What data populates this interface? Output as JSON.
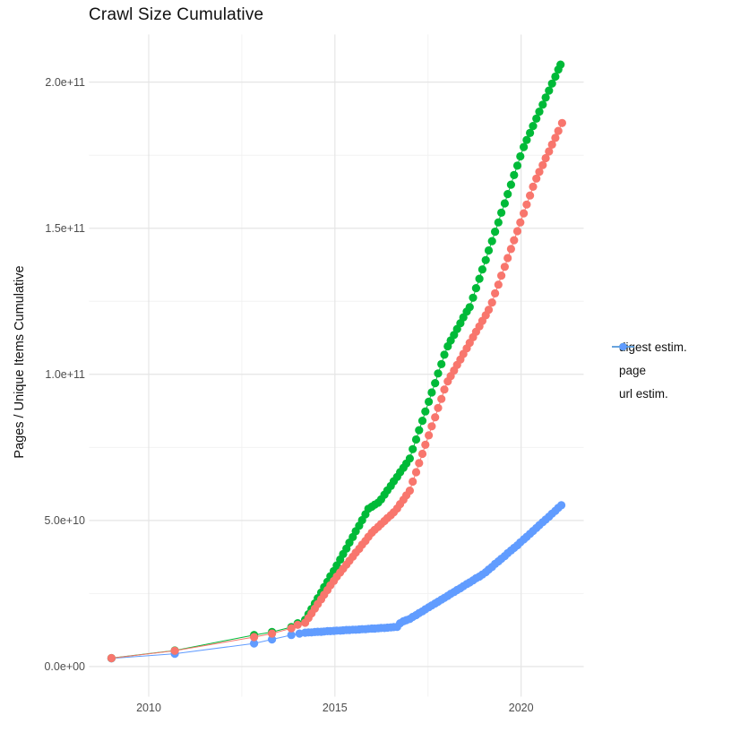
{
  "title": "Crawl Size Cumulative",
  "axes": {
    "y_label": "Pages / Unique Items Cumulative",
    "y_ticks": [
      {
        "label": "0.0e+00",
        "value_e9": 0
      },
      {
        "label": "5.0e+10",
        "value_e9": 50
      },
      {
        "label": "1.0e+11",
        "value_e9": 100
      },
      {
        "label": "1.5e+11",
        "value_e9": 150
      },
      {
        "label": "2.0e+11",
        "value_e9": 200
      }
    ],
    "x_ticks": [
      {
        "label": "2010",
        "value": 2010
      },
      {
        "label": "2015",
        "value": 2015
      },
      {
        "label": "2020",
        "value": 2020
      }
    ],
    "x_minor": [
      2012.5,
      2017.5
    ],
    "y_minor_e9": [
      25,
      75,
      125,
      175
    ]
  },
  "legend": {
    "position": "right",
    "items": [
      "digest estim.",
      "page",
      "url estim."
    ]
  },
  "colors": {
    "digest_estim": "#F8766D",
    "page": "#00BA38",
    "url_estim": "#619CFF",
    "grid_major": "#E5E5E5",
    "grid_minor": "#F2F2F2",
    "axis_text": "#4D4D4D"
  },
  "chart_data": {
    "type": "line",
    "title": "Crawl Size Cumulative",
    "xlabel": "",
    "ylabel": "Pages / Unique Items Cumulative",
    "x_unit": "year",
    "y_unit": "pages / unique items (billions, 1e9)",
    "x_range": [
      2008.4,
      2021.68
    ],
    "y_range_e9": [
      -10.3,
      216.3
    ],
    "grid": true,
    "legend_position": "right",
    "marker": "point",
    "series": [
      {
        "id": "digest-estim",
        "name": "digest estim.",
        "color": "#F8766D",
        "points": [
          [
            2009.0,
            2.9
          ],
          [
            2010.7,
            5.4
          ],
          [
            2012.83,
            10.1
          ],
          [
            2013.31,
            11.3
          ],
          [
            2013.83,
            13.1
          ],
          [
            2014.0,
            14.3
          ],
          [
            2014.2,
            15.0
          ],
          [
            2014.29,
            16.6
          ],
          [
            2014.37,
            18.2
          ],
          [
            2014.46,
            19.8
          ],
          [
            2014.54,
            21.4
          ],
          [
            2014.63,
            23.0
          ],
          [
            2014.71,
            24.6
          ],
          [
            2014.8,
            26.2
          ],
          [
            2014.88,
            27.8
          ],
          [
            2014.97,
            29.3
          ],
          [
            2015.05,
            30.8
          ],
          [
            2015.14,
            32.2
          ],
          [
            2015.22,
            33.5
          ],
          [
            2015.31,
            34.9
          ],
          [
            2015.39,
            36.2
          ],
          [
            2015.48,
            37.6
          ],
          [
            2015.56,
            39.0
          ],
          [
            2015.65,
            40.3
          ],
          [
            2015.73,
            41.7
          ],
          [
            2015.82,
            43.0
          ],
          [
            2015.9,
            44.4
          ],
          [
            2015.99,
            45.8
          ],
          [
            2016.07,
            46.8
          ],
          [
            2016.16,
            47.8
          ],
          [
            2016.24,
            48.8
          ],
          [
            2016.33,
            49.8
          ],
          [
            2016.41,
            50.8
          ],
          [
            2016.5,
            51.8
          ],
          [
            2016.58,
            52.8
          ],
          [
            2016.67,
            54.1
          ],
          [
            2016.75,
            55.6
          ],
          [
            2016.84,
            57.1
          ],
          [
            2016.92,
            58.6
          ],
          [
            2017.01,
            60.2
          ],
          [
            2017.09,
            63.3
          ],
          [
            2017.18,
            66.5
          ],
          [
            2017.26,
            69.6
          ],
          [
            2017.35,
            72.8
          ],
          [
            2017.43,
            75.9
          ],
          [
            2017.52,
            79.1
          ],
          [
            2017.6,
            82.2
          ],
          [
            2017.69,
            85.3
          ],
          [
            2017.77,
            88.5
          ],
          [
            2017.86,
            91.6
          ],
          [
            2017.94,
            94.8
          ],
          [
            2018.03,
            97.6
          ],
          [
            2018.11,
            99.4
          ],
          [
            2018.2,
            101.3
          ],
          [
            2018.28,
            103.2
          ],
          [
            2018.37,
            105.1
          ],
          [
            2018.45,
            107.0
          ],
          [
            2018.54,
            108.9
          ],
          [
            2018.62,
            110.8
          ],
          [
            2018.71,
            112.7
          ],
          [
            2018.79,
            114.6
          ],
          [
            2018.88,
            116.4
          ],
          [
            2018.96,
            118.3
          ],
          [
            2019.05,
            120.2
          ],
          [
            2019.13,
            122.1
          ],
          [
            2019.22,
            124.6
          ],
          [
            2019.3,
            127.7
          ],
          [
            2019.39,
            130.7
          ],
          [
            2019.47,
            133.8
          ],
          [
            2019.56,
            136.8
          ],
          [
            2019.64,
            139.8
          ],
          [
            2019.73,
            142.9
          ],
          [
            2019.81,
            145.9
          ],
          [
            2019.9,
            149.0
          ],
          [
            2019.98,
            152.0
          ],
          [
            2020.07,
            155.1
          ],
          [
            2020.15,
            158.1
          ],
          [
            2020.24,
            161.2
          ],
          [
            2020.32,
            164.2
          ],
          [
            2020.41,
            167.0
          ],
          [
            2020.49,
            169.3
          ],
          [
            2020.58,
            171.6
          ],
          [
            2020.66,
            174.0
          ],
          [
            2020.75,
            176.3
          ],
          [
            2020.83,
            178.6
          ],
          [
            2020.92,
            180.9
          ],
          [
            2021.0,
            183.3
          ],
          [
            2021.1,
            186.0
          ]
        ]
      },
      {
        "id": "page",
        "name": "page",
        "color": "#00BA38",
        "points": [
          [
            2009.0,
            2.9
          ],
          [
            2010.7,
            5.5
          ],
          [
            2012.83,
            10.8
          ],
          [
            2013.31,
            11.8
          ],
          [
            2013.83,
            13.5
          ],
          [
            2014.0,
            14.8
          ],
          [
            2014.2,
            16.0
          ],
          [
            2014.29,
            17.9
          ],
          [
            2014.37,
            19.7
          ],
          [
            2014.46,
            21.6
          ],
          [
            2014.54,
            23.4
          ],
          [
            2014.63,
            25.3
          ],
          [
            2014.71,
            27.2
          ],
          [
            2014.8,
            29.0
          ],
          [
            2014.88,
            30.9
          ],
          [
            2014.97,
            32.7
          ],
          [
            2015.05,
            34.6
          ],
          [
            2015.14,
            36.6
          ],
          [
            2015.22,
            38.5
          ],
          [
            2015.31,
            40.4
          ],
          [
            2015.39,
            42.4
          ],
          [
            2015.48,
            44.3
          ],
          [
            2015.56,
            46.3
          ],
          [
            2015.65,
            48.2
          ],
          [
            2015.73,
            50.1
          ],
          [
            2015.82,
            52.1
          ],
          [
            2015.9,
            54.0
          ],
          [
            2015.99,
            54.7
          ],
          [
            2016.07,
            55.4
          ],
          [
            2016.16,
            56.1
          ],
          [
            2016.24,
            57.2
          ],
          [
            2016.33,
            58.8
          ],
          [
            2016.41,
            60.3
          ],
          [
            2016.5,
            61.8
          ],
          [
            2016.58,
            63.4
          ],
          [
            2016.67,
            64.9
          ],
          [
            2016.75,
            66.5
          ],
          [
            2016.84,
            68.0
          ],
          [
            2016.92,
            69.5
          ],
          [
            2017.01,
            71.2
          ],
          [
            2017.09,
            74.4
          ],
          [
            2017.18,
            77.7
          ],
          [
            2017.26,
            80.9
          ],
          [
            2017.35,
            84.1
          ],
          [
            2017.43,
            87.3
          ],
          [
            2017.52,
            90.6
          ],
          [
            2017.6,
            93.8
          ],
          [
            2017.69,
            97.0
          ],
          [
            2017.77,
            100.3
          ],
          [
            2017.86,
            103.5
          ],
          [
            2017.94,
            106.7
          ],
          [
            2018.03,
            109.6
          ],
          [
            2018.11,
            111.6
          ],
          [
            2018.2,
            113.5
          ],
          [
            2018.28,
            115.5
          ],
          [
            2018.37,
            117.5
          ],
          [
            2018.45,
            119.5
          ],
          [
            2018.54,
            121.5
          ],
          [
            2018.62,
            123.0
          ],
          [
            2018.71,
            126.2
          ],
          [
            2018.79,
            129.5
          ],
          [
            2018.88,
            132.7
          ],
          [
            2018.96,
            135.9
          ],
          [
            2019.05,
            139.1
          ],
          [
            2019.13,
            142.4
          ],
          [
            2019.22,
            145.6
          ],
          [
            2019.3,
            148.8
          ],
          [
            2019.39,
            152.0
          ],
          [
            2019.47,
            155.3
          ],
          [
            2019.56,
            158.5
          ],
          [
            2019.64,
            161.7
          ],
          [
            2019.73,
            164.9
          ],
          [
            2019.81,
            168.2
          ],
          [
            2019.9,
            171.4
          ],
          [
            2019.98,
            174.6
          ],
          [
            2020.07,
            177.8
          ],
          [
            2020.15,
            180.2
          ],
          [
            2020.24,
            182.6
          ],
          [
            2020.32,
            185.0
          ],
          [
            2020.41,
            187.5
          ],
          [
            2020.49,
            189.9
          ],
          [
            2020.58,
            192.3
          ],
          [
            2020.66,
            194.7
          ],
          [
            2020.75,
            197.1
          ],
          [
            2020.83,
            199.5
          ],
          [
            2020.92,
            201.9
          ],
          [
            2021.0,
            204.3
          ],
          [
            2021.06,
            206.0
          ]
        ]
      },
      {
        "id": "url-estim",
        "name": "url estim.",
        "color": "#619CFF",
        "points": [
          [
            2009.0,
            2.8
          ],
          [
            2010.7,
            4.4
          ],
          [
            2012.83,
            7.9
          ],
          [
            2013.31,
            9.3
          ],
          [
            2013.83,
            10.8
          ],
          [
            2014.05,
            11.3
          ],
          [
            2014.2,
            11.6
          ],
          [
            2014.29,
            11.7
          ],
          [
            2014.37,
            11.7
          ],
          [
            2014.46,
            11.8
          ],
          [
            2014.54,
            11.9
          ],
          [
            2014.63,
            11.9
          ],
          [
            2014.71,
            12.0
          ],
          [
            2014.8,
            12.1
          ],
          [
            2014.88,
            12.1
          ],
          [
            2014.97,
            12.2
          ],
          [
            2015.05,
            12.3
          ],
          [
            2015.14,
            12.3
          ],
          [
            2015.22,
            12.4
          ],
          [
            2015.31,
            12.5
          ],
          [
            2015.39,
            12.5
          ],
          [
            2015.48,
            12.6
          ],
          [
            2015.56,
            12.6
          ],
          [
            2015.65,
            12.7
          ],
          [
            2015.73,
            12.8
          ],
          [
            2015.82,
            12.8
          ],
          [
            2015.9,
            12.9
          ],
          [
            2015.99,
            13.0
          ],
          [
            2016.07,
            13.0
          ],
          [
            2016.16,
            13.1
          ],
          [
            2016.24,
            13.2
          ],
          [
            2016.33,
            13.2
          ],
          [
            2016.41,
            13.3
          ],
          [
            2016.5,
            13.4
          ],
          [
            2016.58,
            13.5
          ],
          [
            2016.67,
            13.6
          ],
          [
            2016.75,
            14.8
          ],
          [
            2016.84,
            15.5
          ],
          [
            2016.92,
            15.9
          ],
          [
            2017.01,
            16.3
          ],
          [
            2017.09,
            17.0
          ],
          [
            2017.18,
            17.6
          ],
          [
            2017.26,
            18.3
          ],
          [
            2017.35,
            18.9
          ],
          [
            2017.43,
            19.6
          ],
          [
            2017.52,
            20.3
          ],
          [
            2017.6,
            20.9
          ],
          [
            2017.69,
            21.6
          ],
          [
            2017.77,
            22.2
          ],
          [
            2017.86,
            22.9
          ],
          [
            2017.94,
            23.5
          ],
          [
            2018.03,
            24.2
          ],
          [
            2018.11,
            24.9
          ],
          [
            2018.2,
            25.5
          ],
          [
            2018.28,
            26.2
          ],
          [
            2018.37,
            26.8
          ],
          [
            2018.45,
            27.5
          ],
          [
            2018.54,
            28.2
          ],
          [
            2018.62,
            28.8
          ],
          [
            2018.71,
            29.5
          ],
          [
            2018.79,
            30.2
          ],
          [
            2018.88,
            30.8
          ],
          [
            2018.96,
            31.5
          ],
          [
            2019.05,
            32.3
          ],
          [
            2019.13,
            33.2
          ],
          [
            2019.22,
            34.1
          ],
          [
            2019.3,
            35.1
          ],
          [
            2019.39,
            36.0
          ],
          [
            2019.47,
            36.9
          ],
          [
            2019.56,
            37.8
          ],
          [
            2019.64,
            38.8
          ],
          [
            2019.73,
            39.7
          ],
          [
            2019.81,
            40.6
          ],
          [
            2019.9,
            41.5
          ],
          [
            2019.98,
            42.5
          ],
          [
            2020.07,
            43.5
          ],
          [
            2020.15,
            44.4
          ],
          [
            2020.24,
            45.4
          ],
          [
            2020.32,
            46.4
          ],
          [
            2020.41,
            47.4
          ],
          [
            2020.49,
            48.4
          ],
          [
            2020.58,
            49.4
          ],
          [
            2020.66,
            50.3
          ],
          [
            2020.75,
            51.3
          ],
          [
            2020.83,
            52.3
          ],
          [
            2020.92,
            53.3
          ],
          [
            2021.0,
            54.3
          ],
          [
            2021.08,
            55.2
          ]
        ]
      }
    ]
  }
}
